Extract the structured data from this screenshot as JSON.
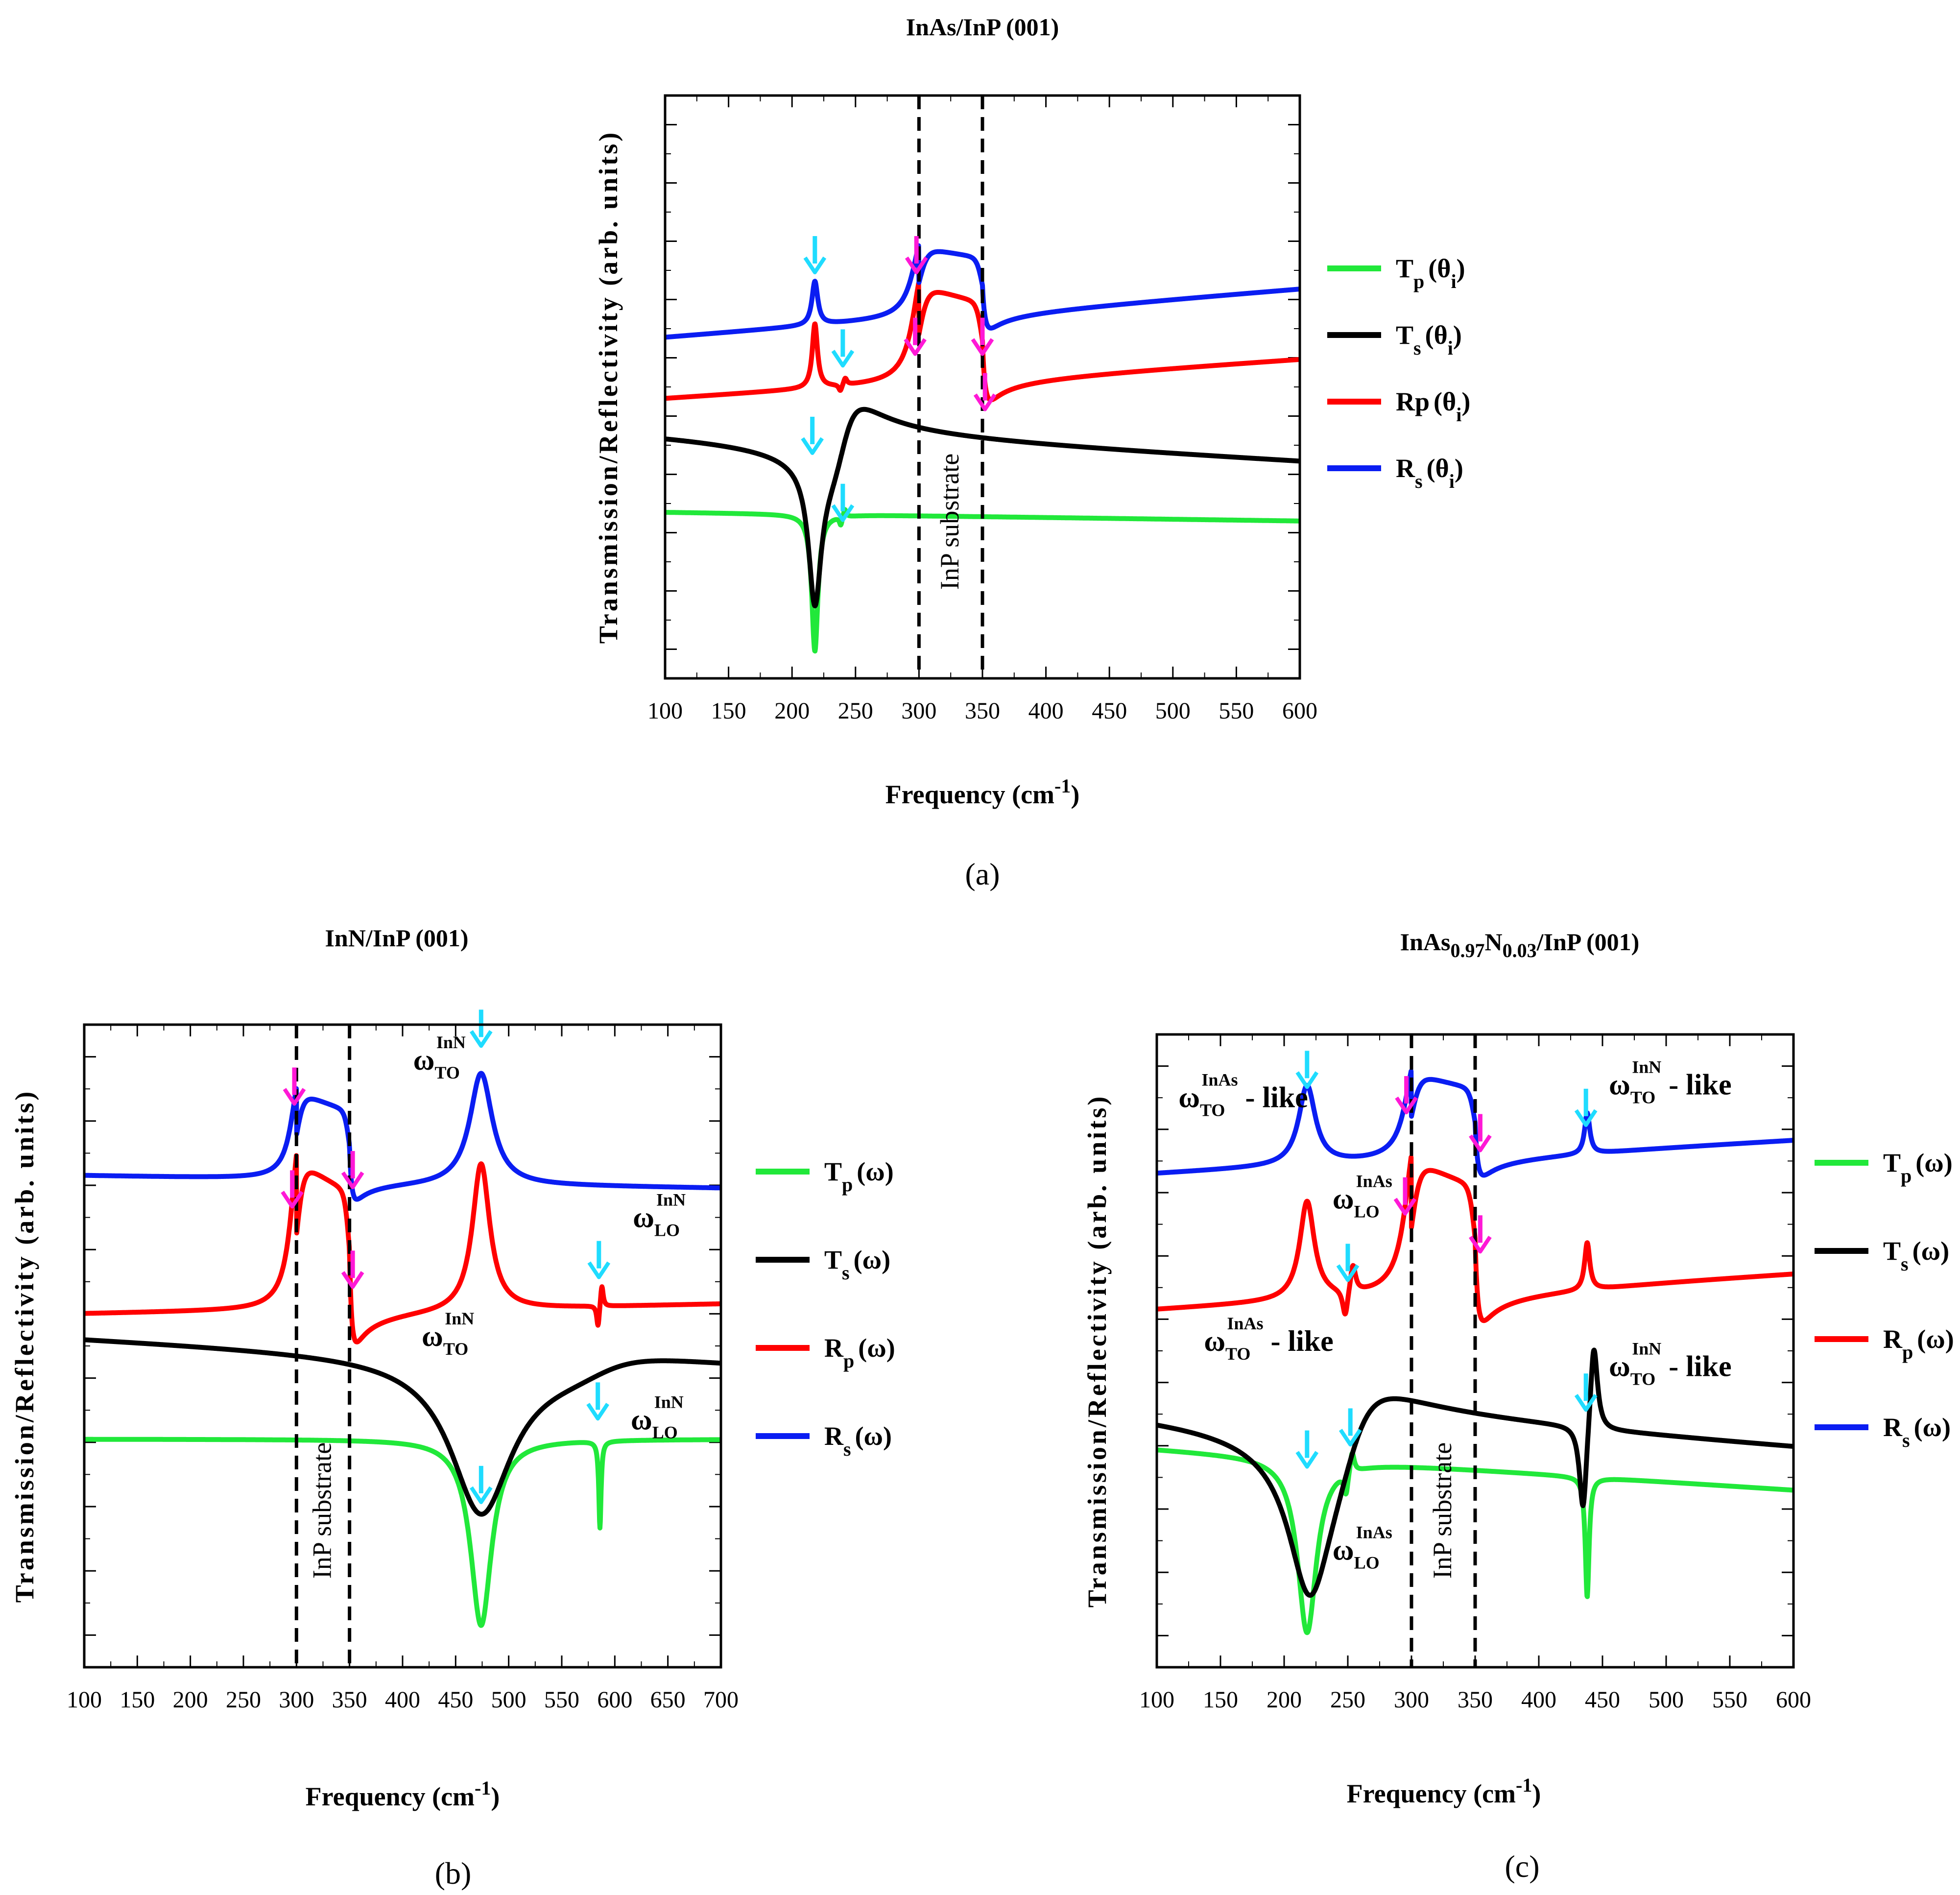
{
  "chart_data": [
    {
      "id": "a",
      "type": "line",
      "title": "InAs/InP (001)",
      "caption": "(a)",
      "xlabel": "Frequency (cm",
      "xlabel_sup": "-1",
      "ylabel": "Transmission/Reflectivity (arb. units)",
      "xlim": [
        100,
        600
      ],
      "xticks": [
        100,
        150,
        200,
        250,
        300,
        350,
        400,
        450,
        500,
        550,
        600
      ],
      "ylim": [
        0,
        10
      ],
      "y_ticks_unlabeled": true,
      "legend_position": "right",
      "region_label": "InP substrate",
      "vlines": [
        300,
        350
      ],
      "series": [
        {
          "name": "T",
          "sub": "p",
          "arg": "(θ",
          "argsub": "i",
          "color": "#21e83a",
          "offset": 2.85,
          "comps": [
            {
              "t": "dip",
              "x0": 218,
              "w": 3,
              "a": 2.35
            },
            {
              "t": "pd",
              "x0": 240,
              "w": 1.3,
              "a": 0.15
            }
          ],
          "slope": -0.0003
        },
        {
          "name": "T",
          "sub": "s",
          "arg": "(θ",
          "argsub": "i",
          "color": "#000000",
          "offset": 4.25,
          "comps": [
            {
              "t": "dip",
              "x0": 218,
              "w": 6,
              "a": 2.3
            },
            {
              "t": "disp",
              "x0": 240,
              "w": 16,
              "a": 1.2
            }
          ],
          "slope": -0.00115
        },
        {
          "name": "Rp",
          "sub": "",
          "arg": "(θ",
          "argsub": "i",
          "color": "#ff0000",
          "offset": 4.8,
          "comps": [
            {
              "t": "peak",
              "x0": 218,
              "w": 2.5,
              "a": 1.1
            },
            {
              "t": "pd",
              "x0": 240,
              "w": 1.6,
              "a": 0.12
            },
            {
              "t": "band",
              "x0": 300,
              "x1": 350,
              "a": 1.65
            }
          ],
          "slope": 0.0014
        },
        {
          "name": "R",
          "sub": "s",
          "arg": "(θ",
          "argsub": "i",
          "color": "#0a1df2",
          "offset": 5.85,
          "comps": [
            {
              "t": "peak",
              "x0": 218,
              "w": 2.8,
              "a": 0.75
            },
            {
              "t": "band",
              "x0": 300,
              "x1": 350,
              "a": 1.2
            }
          ],
          "slope": 0.0017
        }
      ],
      "markers": [
        {
          "x": 218,
          "y": 7.0,
          "color": "#1fdcff"
        },
        {
          "x": 298,
          "y": 7.0,
          "color": "#ff18d6"
        },
        {
          "x": 240,
          "y": 5.4,
          "color": "#1fdcff"
        },
        {
          "x": 297,
          "y": 5.6,
          "color": "#ff18d6"
        },
        {
          "x": 350,
          "y": 5.6,
          "color": "#ff18d6"
        },
        {
          "x": 352,
          "y": 4.65,
          "color": "#ff18d6"
        },
        {
          "x": 216,
          "y": 3.9,
          "color": "#1fdcff"
        },
        {
          "x": 240,
          "y": 2.75,
          "color": "#1fdcff"
        }
      ],
      "annotations": []
    },
    {
      "id": "b",
      "type": "line",
      "title": "InN/InP (001)",
      "caption": "(b)",
      "xlabel": "Frequency (cm",
      "xlabel_sup": "-1",
      "ylabel": "Transmission/Reflectivity (arb. units)",
      "xlim": [
        100,
        700
      ],
      "xticks": [
        100,
        150,
        200,
        250,
        300,
        350,
        400,
        450,
        500,
        550,
        600,
        650,
        700
      ],
      "ylim": [
        0,
        10
      ],
      "y_ticks_unlabeled": true,
      "legend_position": "right",
      "region_label": "InP substrate",
      "vlines": [
        300,
        350
      ],
      "series": [
        {
          "name": "T",
          "sub": "p",
          "arg": "(ω",
          "argsub": "",
          "color": "#21e83a",
          "offset": 3.55,
          "comps": [
            {
              "t": "dip",
              "x0": 474,
              "w": 12,
              "a": 2.9
            },
            {
              "t": "dip",
              "x0": 586,
              "w": 1.3,
              "a": 1.35
            }
          ],
          "slope": 0
        },
        {
          "name": "T",
          "sub": "s",
          "arg": "(ω",
          "argsub": "",
          "color": "#000000",
          "offset": 5.15,
          "comps": [
            {
              "t": "dip",
              "x0": 474,
              "w": 35,
              "a": 2.35
            },
            {
              "t": "disp",
              "x0": 585,
              "w": 55,
              "a": 0.3
            }
          ],
          "slope": -0.0008
        },
        {
          "name": "R",
          "sub": "p",
          "arg": "(ω",
          "argsub": "",
          "color": "#ff0000",
          "offset": 5.5,
          "comps": [
            {
              "t": "band",
              "x0": 300,
              "x1": 350,
              "a": 2.3
            },
            {
              "t": "peak",
              "x0": 474,
              "w": 10,
              "a": 2.3
            },
            {
              "t": "pd",
              "x0": 586,
              "w": 1.5,
              "a": 0.35
            }
          ],
          "slope": 0.0003
        },
        {
          "name": "R",
          "sub": "s",
          "arg": "(ω",
          "argsub": "",
          "color": "#0a1df2",
          "offset": 7.65,
          "comps": [
            {
              "t": "band",
              "x0": 300,
              "x1": 350,
              "a": 1.35
            },
            {
              "t": "peak",
              "x0": 474,
              "w": 13,
              "a": 1.75
            }
          ],
          "slope": -0.0003
        }
      ],
      "markers": [
        {
          "x": 298,
          "y": 8.8,
          "color": "#ff18d6"
        },
        {
          "x": 474,
          "y": 9.7,
          "color": "#1fdcff"
        },
        {
          "x": 296,
          "y": 7.2,
          "color": "#ff18d6"
        },
        {
          "x": 353,
          "y": 7.5,
          "color": "#ff18d6"
        },
        {
          "x": 353,
          "y": 5.95,
          "color": "#ff18d6"
        },
        {
          "x": 585,
          "y": 6.1,
          "color": "#1fdcff"
        },
        {
          "x": 584,
          "y": 3.9,
          "color": "#1fdcff"
        },
        {
          "x": 474,
          "y": 2.6,
          "color": "#1fdcff"
        }
      ],
      "annotations": [
        {
          "main": "ω",
          "sub": "TO",
          "sup": "InN",
          "tail": "",
          "x": 410,
          "y": 9.3
        },
        {
          "main": "ω",
          "sub": "LO",
          "sup": "InN",
          "tail": "",
          "x": 617,
          "y": 6.85
        },
        {
          "main": "ω",
          "sub": "TO",
          "sup": "InN",
          "tail": "",
          "x": 418,
          "y": 5.0
        },
        {
          "main": "ω",
          "sub": "LO",
          "sup": "InN",
          "tail": "",
          "x": 615,
          "y": 3.7
        }
      ]
    },
    {
      "id": "c",
      "type": "line",
      "title": "InAs",
      "title_sub1": "0.97",
      "title_mid": "N",
      "title_sub2": "0.03",
      "title_tail": "/InP (001)",
      "caption": "(c)",
      "xlabel": "Frequency (cm",
      "xlabel_sup": "-1",
      "ylabel": "Transmission/Reflectivity (arb. units)",
      "xlim": [
        100,
        600
      ],
      "xticks": [
        100,
        150,
        200,
        250,
        300,
        350,
        400,
        450,
        500,
        550,
        600
      ],
      "ylim": [
        0,
        10
      ],
      "y_ticks_unlabeled": true,
      "legend_position": "right",
      "region_label": "InP substrate",
      "vlines": [
        300,
        350
      ],
      "series": [
        {
          "name": "T",
          "sub": "p",
          "arg": "(ω",
          "argsub": "",
          "color": "#21e83a",
          "offset": 3.45,
          "comps": [
            {
              "t": "dip",
              "x0": 218,
              "w": 9,
              "a": 2.75
            },
            {
              "t": "pd",
              "x0": 251,
              "w": 2,
              "a": 0.35
            },
            {
              "t": "dip",
              "x0": 438,
              "w": 1.8,
              "a": 1.9
            }
          ],
          "slope": -0.0013
        },
        {
          "name": "T",
          "sub": "s",
          "arg": "(ω",
          "argsub": "",
          "color": "#000000",
          "offset": 4.1,
          "comps": [
            {
              "t": "dip",
              "x0": 220,
              "w": 20,
              "a": 2.2
            },
            {
              "t": "disp",
              "x0": 252,
              "w": 28,
              "a": 1.2
            },
            {
              "t": "pd",
              "x0": 439,
              "w": 3.5,
              "a": 1.45
            }
          ],
          "slope": -0.0014
        },
        {
          "name": "R",
          "sub": "p",
          "arg": "(ω",
          "argsub": "",
          "color": "#ff0000",
          "offset": 5.65,
          "comps": [
            {
              "t": "peak",
              "x0": 218,
              "w": 7,
              "a": 1.55
            },
            {
              "t": "pd",
              "x0": 251,
              "w": 2.5,
              "a": 0.45
            },
            {
              "t": "band",
              "x0": 300,
              "x1": 350,
              "a": 2.1
            },
            {
              "t": "peak",
              "x0": 438,
              "w": 2.5,
              "a": 0.75
            }
          ],
          "slope": 0.0012
        },
        {
          "name": "R",
          "sub": "s",
          "arg": "(ω",
          "argsub": "",
          "color": "#0a1df2",
          "offset": 7.8,
          "comps": [
            {
              "t": "peak",
              "x0": 218,
              "w": 8,
              "a": 1.25
            },
            {
              "t": "band",
              "x0": 300,
              "x1": 350,
              "a": 1.35
            },
            {
              "t": "peak",
              "x0": 438,
              "w": 2.5,
              "a": 0.65
            }
          ],
          "slope": 0.0011
        }
      ],
      "markers": [
        {
          "x": 218,
          "y": 9.2,
          "color": "#1fdcff"
        },
        {
          "x": 296,
          "y": 8.8,
          "color": "#ff18d6"
        },
        {
          "x": 437,
          "y": 8.6,
          "color": "#1fdcff"
        },
        {
          "x": 354,
          "y": 8.2,
          "color": "#ff18d6"
        },
        {
          "x": 295,
          "y": 7.2,
          "color": "#ff18d6"
        },
        {
          "x": 354,
          "y": 6.6,
          "color": "#ff18d6"
        },
        {
          "x": 250,
          "y": 6.15,
          "color": "#1fdcff"
        },
        {
          "x": 437,
          "y": 4.1,
          "color": "#1fdcff"
        },
        {
          "x": 218,
          "y": 3.2,
          "color": "#1fdcff"
        },
        {
          "x": 252,
          "y": 3.55,
          "color": "#1fdcff"
        }
      ],
      "annotations": [
        {
          "main": "ω",
          "sub": "TO",
          "sup": "InAs",
          "tail": " - like",
          "x": 117,
          "y": 8.85
        },
        {
          "main": "ω",
          "sub": "LO",
          "sup": "InAs",
          "tail": "",
          "x": 238,
          "y": 7.25
        },
        {
          "main": "ω",
          "sub": "TO",
          "sup": "InN",
          "tail": " - like",
          "x": 455,
          "y": 9.05
        },
        {
          "main": "ω",
          "sub": "TO",
          "sup": "InAs",
          "tail": " - like",
          "x": 137,
          "y": 5.0
        },
        {
          "main": "ω",
          "sub": "TO",
          "sup": "InN",
          "tail": " - like",
          "x": 455,
          "y": 4.6
        },
        {
          "main": "ω",
          "sub": "LO",
          "sup": "InAs",
          "tail": "",
          "x": 238,
          "y": 1.7
        }
      ]
    }
  ]
}
